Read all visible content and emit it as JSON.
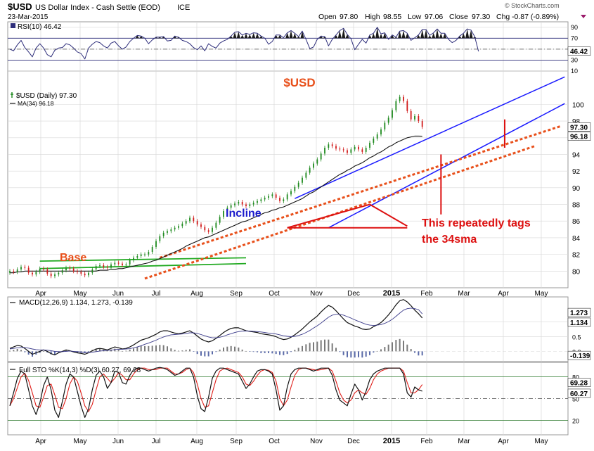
{
  "header": {
    "symbol": "$USD",
    "name": "US Dollar Index - Cash Settle (EOD)",
    "exchange": "ICE",
    "date": "23-Mar-2015",
    "watermark": "© StockCharts.com",
    "open_label": "Open",
    "open": "97.80",
    "high_label": "High",
    "high": "98.55",
    "low_label": "Low",
    "low": "97.06",
    "close_label": "Close",
    "close": "97.30",
    "chg_label": "Chg",
    "chg": "-0.87 (-0.89%)"
  },
  "chart_data": [
    {
      "id": "rsi",
      "type": "line",
      "legend": "RSI(10) 46.42",
      "ylim": [
        10,
        100
      ],
      "yticks": [
        10,
        30,
        50,
        70,
        90
      ],
      "overbought": 70,
      "oversold": 30,
      "last_value": "46.42",
      "values": [
        50,
        47,
        58,
        66,
        53,
        45,
        36,
        52,
        60,
        52,
        40,
        36,
        48,
        52,
        53,
        60,
        58,
        52,
        45,
        42,
        32,
        52,
        59,
        64,
        62,
        56,
        52,
        61,
        64,
        56,
        50,
        54,
        64,
        70,
        75,
        74,
        70,
        60,
        67,
        72,
        72,
        73,
        65,
        66,
        74,
        72,
        66,
        64,
        60,
        53,
        49,
        56,
        47,
        60,
        55,
        52,
        61,
        65,
        68,
        74,
        81,
        82,
        76,
        79,
        77,
        80,
        79,
        74,
        70,
        59,
        64,
        76,
        76,
        71,
        80,
        84,
        79,
        73,
        83,
        68,
        51,
        54,
        68,
        74,
        73,
        56,
        68,
        76,
        84,
        88,
        77,
        69,
        49,
        59,
        68,
        61,
        76,
        79,
        90,
        78,
        80,
        68,
        76,
        72,
        83,
        84,
        79,
        66,
        71,
        76,
        86,
        86,
        75,
        80,
        87,
        79,
        79,
        68,
        62,
        66,
        74,
        79,
        87,
        85,
        73,
        46
      ]
    },
    {
      "id": "price",
      "type": "candlestick",
      "title": "$USD",
      "legend_price": "$USD (Daily) 97.30",
      "legend_ma": "MA(34) 96.18",
      "ylim": [
        78,
        104
      ],
      "yticks": [
        80,
        82,
        84,
        86,
        88,
        90,
        92,
        94,
        96,
        98,
        100
      ],
      "last_close": "97.30",
      "last_ma": "96.18",
      "closes": [
        80.0,
        79.9,
        80.2,
        80.5,
        80.4,
        79.8,
        79.6,
        79.9,
        80.3,
        80.2,
        79.7,
        79.4,
        79.6,
        79.8,
        80.1,
        80.4,
        80.3,
        80.0,
        79.9,
        79.7,
        79.5,
        79.8,
        80.2,
        80.6,
        80.7,
        80.5,
        80.4,
        80.8,
        81.0,
        80.9,
        80.7,
        80.8,
        81.3,
        81.6,
        81.8,
        82.0,
        82.0,
        82.3,
        82.9,
        83.6,
        84.2,
        84.6,
        84.8,
        85.0,
        85.2,
        85.4,
        85.7,
        86.0,
        86.4,
        86.0,
        85.6,
        85.3,
        84.9,
        84.7,
        85.2,
        85.8,
        86.5,
        87.2,
        87.6,
        87.9,
        88.1,
        88.3,
        88.0,
        87.8,
        88.0,
        88.2,
        88.4,
        88.6,
        88.8,
        89.0,
        89.2,
        88.8,
        88.4,
        88.6,
        89.2,
        89.6,
        90.1,
        90.6,
        91.2,
        91.8,
        92.4,
        92.9,
        93.4,
        94.1,
        94.8,
        95.2,
        95.0,
        94.7,
        94.6,
        94.5,
        94.2,
        94.6,
        94.9,
        94.6,
        94.3,
        94.8,
        95.4,
        95.9,
        96.4,
        97.0,
        97.8,
        98.4,
        99.3,
        100.4,
        100.9,
        100.4,
        99.2,
        98.2,
        98.6,
        98.0,
        97.3
      ],
      "ma34": [
        79.8,
        79.8,
        79.9,
        79.9,
        80.0,
        80.0,
        80.0,
        80.0,
        80.0,
        80.0,
        80.0,
        80.0,
        80.0,
        80.0,
        80.0,
        80.0,
        80.0,
        80.0,
        80.0,
        80.0,
        80.0,
        80.0,
        80.0,
        80.0,
        80.1,
        80.1,
        80.1,
        80.2,
        80.2,
        80.3,
        80.3,
        80.4,
        80.5,
        80.6,
        80.7,
        80.8,
        80.9,
        81.0,
        81.2,
        81.3,
        81.5,
        81.7,
        81.9,
        82.1,
        82.3,
        82.5,
        82.7,
        83.0,
        83.2,
        83.4,
        83.6,
        83.8,
        84.0,
        84.1,
        84.3,
        84.5,
        84.7,
        84.9,
        85.1,
        85.3,
        85.5,
        85.7,
        85.9,
        86.0,
        86.2,
        86.4,
        86.6,
        86.8,
        87.0,
        87.1,
        87.3,
        87.4,
        87.6,
        87.7,
        87.9,
        88.1,
        88.3,
        88.5,
        88.7,
        89.0,
        89.3,
        89.5,
        89.8,
        90.1,
        90.4,
        90.7,
        91.0,
        91.3,
        91.6,
        91.8,
        92.1,
        92.3,
        92.6,
        92.8,
        93.0,
        93.3,
        93.6,
        93.8,
        94.1,
        94.3,
        94.6,
        94.9,
        95.1,
        95.4,
        95.6,
        95.8,
        96.0,
        96.1,
        96.2,
        96.2,
        96.18
      ]
    },
    {
      "id": "macd",
      "type": "line",
      "legend": "MACD(12,26,9) 1.134, 1.273, -0.139",
      "ylim": [
        -0.35,
        1.85
      ],
      "yticks": [
        0.0,
        0.5,
        1.0
      ],
      "last_values": [
        "1.273",
        "1.134",
        "-0.139"
      ],
      "macd": [
        0.1,
        0.15,
        0.2,
        0.18,
        0.1,
        0.0,
        -0.1,
        -0.05,
        0.0,
        0.05,
        0.0,
        -0.08,
        -0.12,
        -0.05,
        0.0,
        0.05,
        0.02,
        -0.02,
        -0.05,
        -0.07,
        -0.1,
        -0.05,
        0.02,
        0.08,
        0.1,
        0.08,
        0.05,
        0.1,
        0.15,
        0.12,
        0.08,
        0.1,
        0.15,
        0.22,
        0.3,
        0.38,
        0.42,
        0.46,
        0.52,
        0.58,
        0.66,
        0.7,
        0.7,
        0.66,
        0.62,
        0.6,
        0.62,
        0.66,
        0.7,
        0.62,
        0.52,
        0.42,
        0.36,
        0.32,
        0.36,
        0.44,
        0.54,
        0.64,
        0.72,
        0.78,
        0.8,
        0.8,
        0.75,
        0.7,
        0.68,
        0.66,
        0.64,
        0.6,
        0.58,
        0.56,
        0.54,
        0.5,
        0.44,
        0.4,
        0.42,
        0.48,
        0.56,
        0.66,
        0.76,
        0.88,
        1.0,
        1.1,
        1.2,
        1.34,
        1.46,
        1.56,
        1.5,
        1.38,
        1.24,
        1.1,
        0.98,
        0.92,
        0.86,
        0.82,
        0.76,
        0.74,
        0.76,
        0.84,
        0.9,
        0.98,
        1.1,
        1.24,
        1.4,
        1.58,
        1.72,
        1.76,
        1.68,
        1.55,
        1.4,
        1.28,
        1.134
      ],
      "signal": [
        0.08,
        0.1,
        0.12,
        0.13,
        0.13,
        0.11,
        0.08,
        0.06,
        0.05,
        0.05,
        0.04,
        0.02,
        0.0,
        -0.01,
        -0.01,
        0.0,
        0.01,
        0.0,
        -0.01,
        -0.02,
        -0.04,
        -0.04,
        -0.03,
        -0.01,
        0.01,
        0.02,
        0.03,
        0.04,
        0.06,
        0.07,
        0.07,
        0.08,
        0.09,
        0.12,
        0.15,
        0.19,
        0.24,
        0.28,
        0.33,
        0.38,
        0.44,
        0.49,
        0.53,
        0.56,
        0.57,
        0.58,
        0.59,
        0.61,
        0.63,
        0.63,
        0.61,
        0.57,
        0.53,
        0.49,
        0.46,
        0.46,
        0.48,
        0.51,
        0.56,
        0.6,
        0.64,
        0.67,
        0.69,
        0.69,
        0.69,
        0.68,
        0.67,
        0.66,
        0.64,
        0.62,
        0.61,
        0.59,
        0.56,
        0.53,
        0.51,
        0.5,
        0.51,
        0.54,
        0.58,
        0.64,
        0.71,
        0.79,
        0.87,
        0.96,
        1.06,
        1.16,
        1.23,
        1.26,
        1.26,
        1.23,
        1.18,
        1.13,
        1.07,
        1.02,
        0.97,
        0.92,
        0.89,
        0.88,
        0.89,
        0.91,
        0.95,
        1.01,
        1.09,
        1.19,
        1.3,
        1.4,
        1.45,
        1.47,
        1.45,
        1.42,
        1.273
      ]
    },
    {
      "id": "sto",
      "type": "line",
      "legend": "Full STO %K(14,3) %D(3) 60.27, 69.28",
      "ylim": [
        0,
        100
      ],
      "yticks": [
        20,
        50,
        80
      ],
      "last_values": [
        "69.28",
        "60.27"
      ],
      "k": [
        40,
        58,
        78,
        88,
        84,
        62,
        40,
        28,
        44,
        68,
        80,
        62,
        34,
        24,
        46,
        70,
        84,
        80,
        60,
        40,
        24,
        36,
        62,
        82,
        88,
        80,
        64,
        72,
        88,
        86,
        72,
        70,
        82,
        90,
        92,
        92,
        90,
        88,
        90,
        92,
        93,
        92,
        90,
        86,
        82,
        84,
        88,
        92,
        92,
        80,
        54,
        36,
        32,
        52,
        78,
        88,
        92,
        92,
        90,
        88,
        86,
        84,
        74,
        64,
        70,
        80,
        88,
        90,
        90,
        88,
        84,
        62,
        34,
        40,
        66,
        84,
        90,
        92,
        92,
        92,
        90,
        88,
        90,
        92,
        92,
        92,
        82,
        62,
        48,
        44,
        40,
        56,
        70,
        62,
        48,
        60,
        76,
        84,
        88,
        90,
        92,
        92,
        92,
        92,
        92,
        84,
        58,
        52,
        66,
        62,
        60.27
      ],
      "d": [
        40,
        50,
        65,
        80,
        85,
        75,
        58,
        40,
        38,
        52,
        68,
        70,
        55,
        38,
        36,
        50,
        70,
        80,
        74,
        58,
        40,
        32,
        42,
        62,
        80,
        84,
        78,
        72,
        78,
        86,
        82,
        76,
        76,
        84,
        90,
        92,
        92,
        90,
        90,
        90,
        92,
        92,
        92,
        88,
        84,
        84,
        86,
        90,
        92,
        86,
        70,
        50,
        38,
        40,
        58,
        76,
        88,
        91,
        92,
        90,
        88,
        86,
        80,
        70,
        68,
        74,
        82,
        88,
        90,
        89,
        86,
        74,
        50,
        40,
        48,
        66,
        82,
        90,
        92,
        92,
        91,
        90,
        89,
        90,
        91,
        92,
        88,
        74,
        58,
        48,
        44,
        48,
        58,
        62,
        58,
        56,
        64,
        76,
        84,
        88,
        90,
        92,
        92,
        92,
        92,
        88,
        72,
        58,
        58,
        62,
        69.28
      ]
    }
  ],
  "x_axis": {
    "labels": [
      "Apr",
      "May",
      "Jun",
      "Jul",
      "Aug",
      "Sep",
      "Oct",
      "Nov",
      "Dec",
      "2015",
      "Feb",
      "Mar",
      "Apr",
      "May"
    ],
    "bold": [
      "2015"
    ]
  },
  "annotations": {
    "base": "Base",
    "incline": "Incline",
    "tag_line1": "This repeatedly tags",
    "tag_line2": "the 34sma"
  },
  "colors": {
    "price_up": "#1f8a1f",
    "price_down": "#d11a1a",
    "ma": "#111111",
    "channel": "#1a1aff",
    "trend_dotted": "#e8501b",
    "base_channel": "#22aa22",
    "incline_text": "#1a1acc",
    "base_text": "#e8501b",
    "annotation": "#dd1111",
    "rsi_line": "#2d2d7a",
    "histogram_up": "#7a7a7a",
    "histogram_down": "#5a6aa8",
    "sto_k": "#111111",
    "sto_d": "#e0201b",
    "grid": "#d8d8d8"
  }
}
